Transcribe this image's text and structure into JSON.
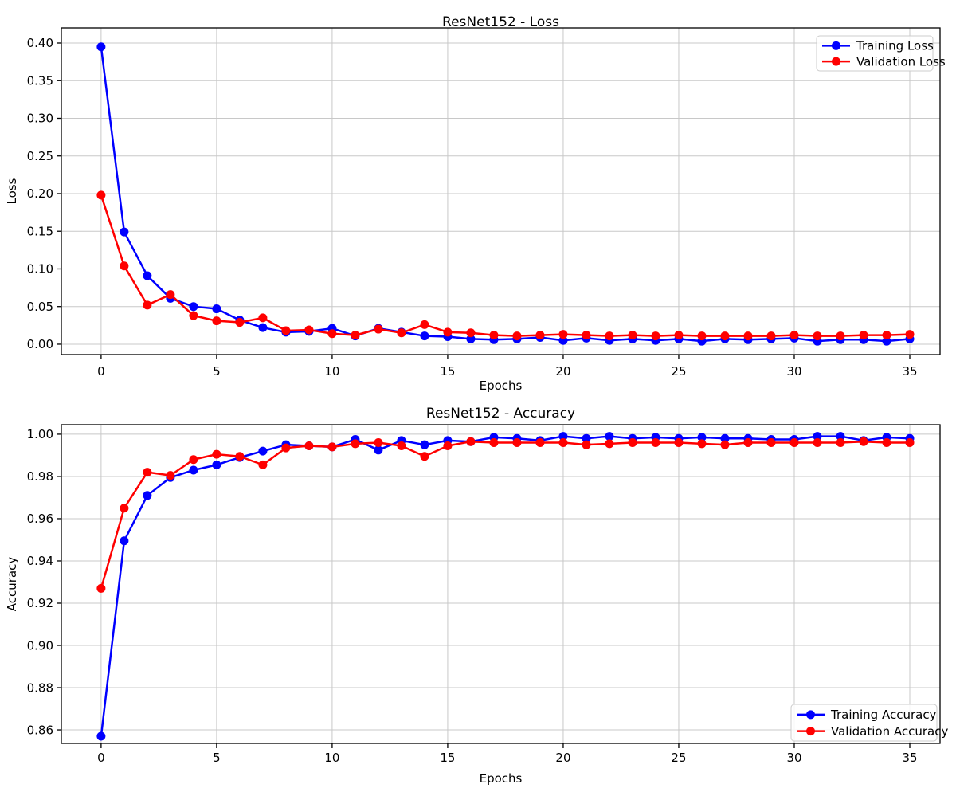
{
  "figure": {
    "background": "#ffffff",
    "grid_color": "#c8c8c8",
    "spine_color": "#000000",
    "train_color": "#0000ff",
    "val_color": "#ff0000"
  },
  "chart_data": [
    {
      "type": "line",
      "title": "ResNet152 - Loss",
      "xlabel": "Epochs",
      "ylabel": "Loss",
      "grid": true,
      "legend_position": "upper right",
      "xlim": [
        -1.72,
        36.31
      ],
      "ylim": [
        -0.0138,
        0.4201
      ],
      "xticks": [
        0,
        5,
        10,
        15,
        20,
        25,
        30,
        35
      ],
      "xtick_labels": [
        "0",
        "5",
        "10",
        "15",
        "20",
        "25",
        "30",
        "35"
      ],
      "yticks": [
        0.0,
        0.05,
        0.1,
        0.15,
        0.2,
        0.25,
        0.3,
        0.35,
        0.4
      ],
      "ytick_labels": [
        "0.00",
        "0.05",
        "0.10",
        "0.15",
        "0.20",
        "0.25",
        "0.30",
        "0.35",
        "0.40"
      ],
      "x": [
        0,
        1,
        2,
        3,
        4,
        5,
        6,
        7,
        8,
        9,
        10,
        11,
        12,
        13,
        14,
        15,
        16,
        17,
        18,
        19,
        20,
        21,
        22,
        23,
        24,
        25,
        26,
        27,
        28,
        29,
        30,
        31,
        32,
        33,
        34,
        35
      ],
      "series": [
        {
          "name": "Training Loss",
          "color": "#0000ff",
          "values": [
            0.395,
            0.149,
            0.091,
            0.061,
            0.05,
            0.047,
            0.032,
            0.022,
            0.016,
            0.017,
            0.021,
            0.011,
            0.021,
            0.016,
            0.011,
            0.01,
            0.007,
            0.006,
            0.007,
            0.009,
            0.005,
            0.008,
            0.005,
            0.007,
            0.005,
            0.007,
            0.004,
            0.007,
            0.006,
            0.007,
            0.008,
            0.004,
            0.006,
            0.006,
            0.004,
            0.007
          ]
        },
        {
          "name": "Validation Loss",
          "color": "#ff0000",
          "values": [
            0.198,
            0.104,
            0.052,
            0.066,
            0.038,
            0.031,
            0.029,
            0.035,
            0.018,
            0.019,
            0.014,
            0.012,
            0.02,
            0.015,
            0.026,
            0.016,
            0.015,
            0.012,
            0.011,
            0.012,
            0.013,
            0.012,
            0.011,
            0.012,
            0.011,
            0.012,
            0.011,
            0.011,
            0.011,
            0.011,
            0.012,
            0.011,
            0.011,
            0.012,
            0.012,
            0.013
          ]
        }
      ]
    },
    {
      "type": "line",
      "title": "ResNet152 - Accuracy",
      "xlabel": "Epochs",
      "ylabel": "Accuracy",
      "grid": true,
      "legend_position": "lower right",
      "xlim": [
        -1.72,
        36.31
      ],
      "ylim": [
        0.8536,
        1.0045
      ],
      "xticks": [
        0,
        5,
        10,
        15,
        20,
        25,
        30,
        35
      ],
      "xtick_labels": [
        "0",
        "5",
        "10",
        "15",
        "20",
        "25",
        "30",
        "35"
      ],
      "yticks": [
        0.86,
        0.88,
        0.9,
        0.92,
        0.94,
        0.96,
        0.98,
        1.0
      ],
      "ytick_labels": [
        "0.86",
        "0.88",
        "0.90",
        "0.92",
        "0.94",
        "0.96",
        "0.98",
        "1.00"
      ],
      "x": [
        0,
        1,
        2,
        3,
        4,
        5,
        6,
        7,
        8,
        9,
        10,
        11,
        12,
        13,
        14,
        15,
        16,
        17,
        18,
        19,
        20,
        21,
        22,
        23,
        24,
        25,
        26,
        27,
        28,
        29,
        30,
        31,
        32,
        33,
        34,
        35
      ],
      "series": [
        {
          "name": "Training Accuracy",
          "color": "#0000ff",
          "values": [
            0.857,
            0.9495,
            0.971,
            0.9795,
            0.983,
            0.9855,
            0.989,
            0.992,
            0.995,
            0.9945,
            0.994,
            0.9975,
            0.9925,
            0.997,
            0.995,
            0.997,
            0.9965,
            0.9985,
            0.998,
            0.997,
            0.999,
            0.998,
            0.999,
            0.998,
            0.9985,
            0.998,
            0.9985,
            0.998,
            0.998,
            0.9975,
            0.9975,
            0.999,
            0.999,
            0.997,
            0.9985,
            0.998
          ]
        },
        {
          "name": "Validation Accuracy",
          "color": "#ff0000",
          "values": [
            0.927,
            0.965,
            0.982,
            0.9805,
            0.988,
            0.9905,
            0.9895,
            0.9855,
            0.9935,
            0.9945,
            0.994,
            0.9955,
            0.996,
            0.9945,
            0.9895,
            0.9945,
            0.9965,
            0.996,
            0.996,
            0.996,
            0.996,
            0.995,
            0.9955,
            0.996,
            0.996,
            0.996,
            0.9955,
            0.995,
            0.996,
            0.996,
            0.996,
            0.996,
            0.996,
            0.9965,
            0.996,
            0.996
          ]
        }
      ]
    }
  ]
}
